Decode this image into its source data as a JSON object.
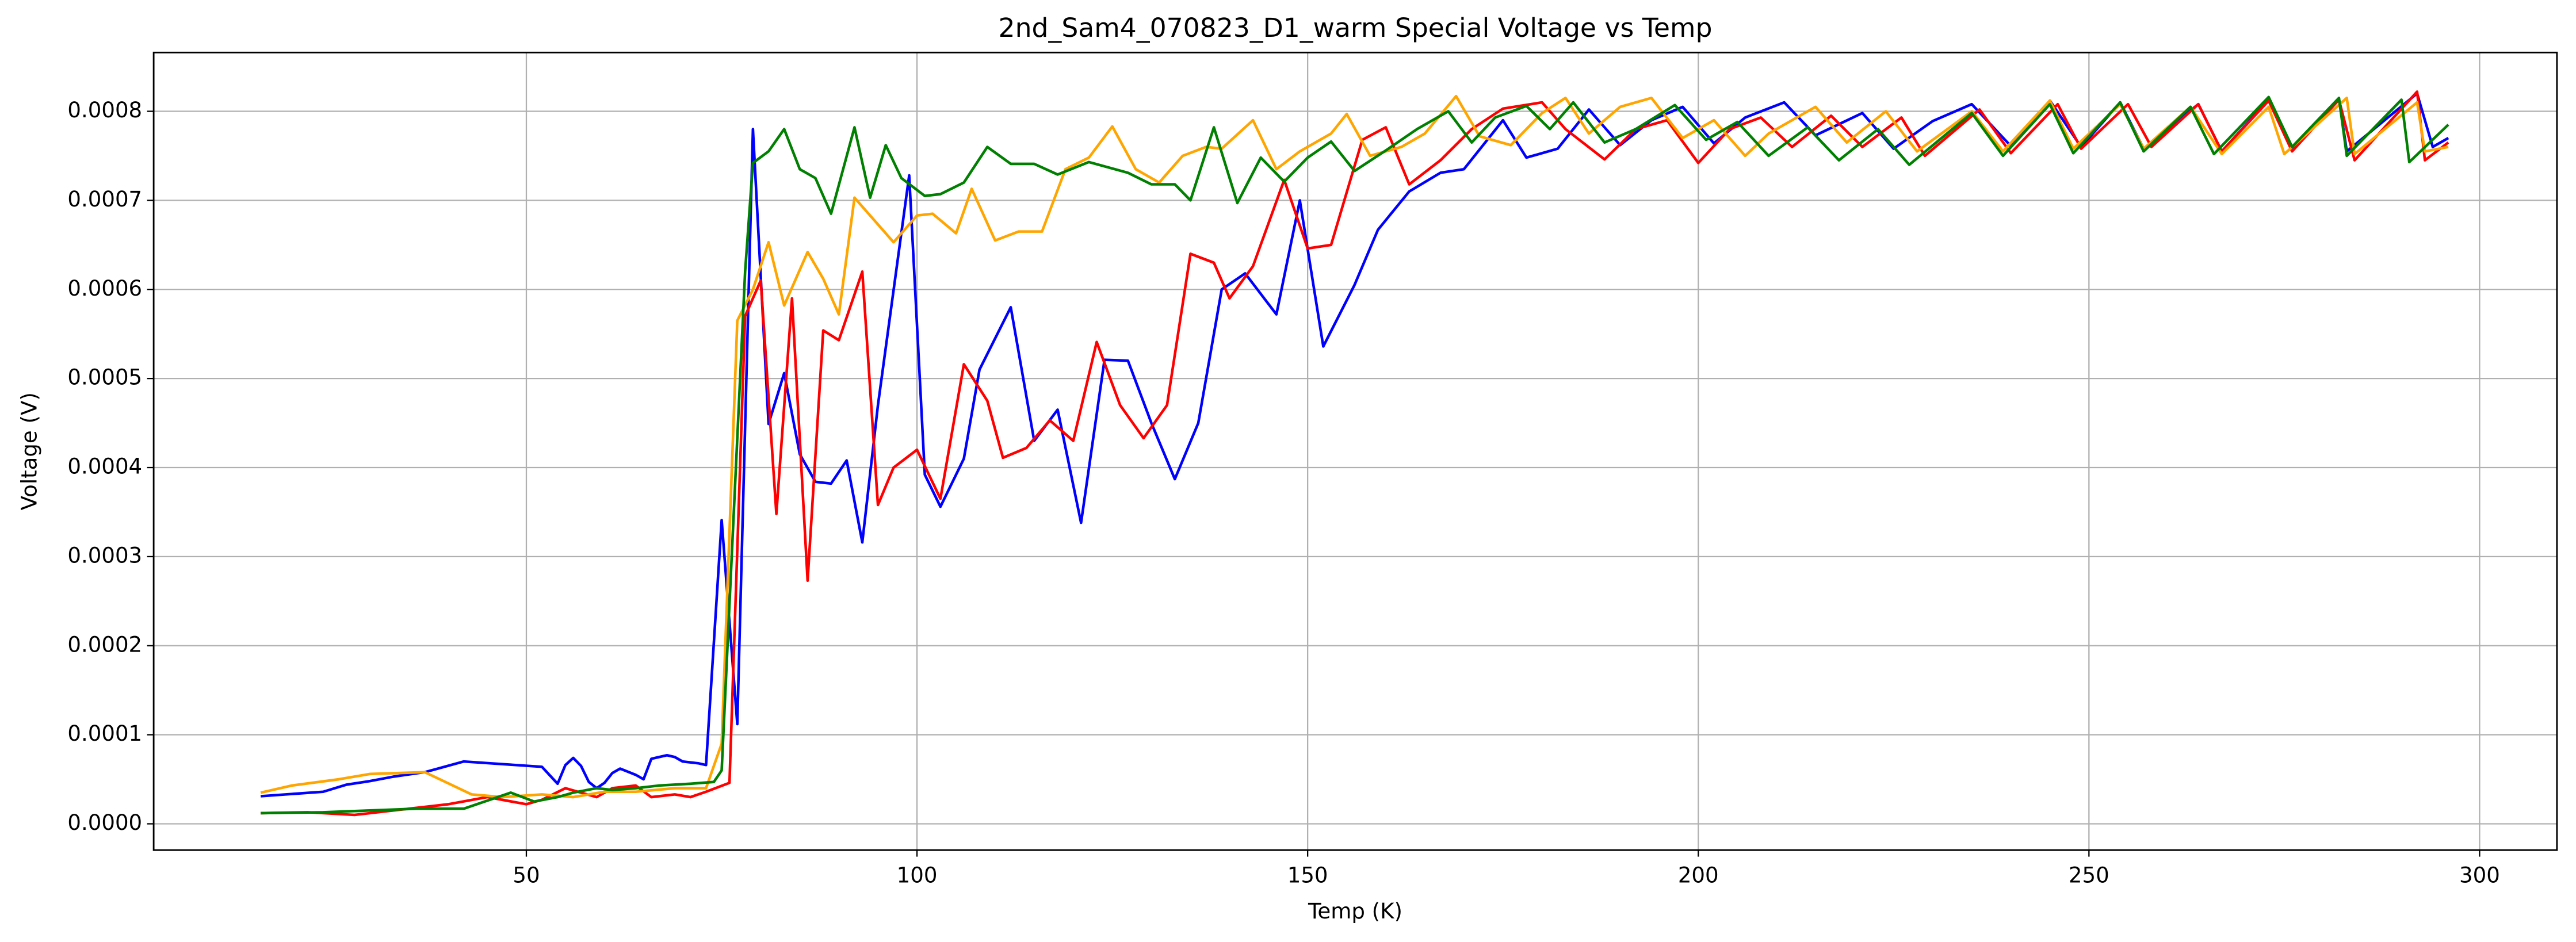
{
  "chart_data": {
    "type": "line",
    "title": "2nd_Sam4_070823_D1_warm Special Voltage vs Temp",
    "x_label": "Temp (K)",
    "y_label": "Voltage (V)",
    "grid": true,
    "xlim": [
      2.3,
      309.9
    ],
    "xticks": [
      50,
      100,
      150,
      200,
      250,
      300
    ],
    "ylim": [
      -2.95e-05,
      0.000866
    ],
    "yticks": [
      {
        "value": 0,
        "label": "0.0000"
      },
      {
        "value": 0.0001,
        "label": "0.0001"
      },
      {
        "value": 0.0002,
        "label": "0.0002"
      },
      {
        "value": 0.0003,
        "label": "0.0003"
      },
      {
        "value": 0.0004,
        "label": "0.0004"
      },
      {
        "value": 0.0005,
        "label": "0.0005"
      },
      {
        "value": 0.0006,
        "label": "0.0006"
      },
      {
        "value": 0.0007,
        "label": "0.0007"
      },
      {
        "value": 0.0008,
        "label": "0.0008"
      }
    ],
    "series": [
      {
        "color": "#0000ff",
        "x": [
          16,
          24,
          27,
          30,
          33,
          37,
          42,
          47,
          52,
          54,
          55,
          56,
          57,
          58,
          59,
          60,
          61,
          62,
          64,
          65,
          66,
          68,
          69,
          70,
          72,
          73,
          75,
          77,
          79,
          81,
          83,
          85,
          87,
          89,
          91,
          93,
          95,
          99,
          101,
          103,
          106,
          108,
          112,
          115,
          118,
          121,
          124,
          127,
          130,
          133,
          136,
          139,
          142,
          146,
          149,
          152,
          156,
          159,
          163,
          167,
          170,
          175,
          178,
          182,
          186,
          190,
          194,
          198,
          202,
          206,
          211,
          215,
          221,
          225,
          230,
          235,
          240,
          245,
          249,
          254,
          257,
          264,
          267,
          273,
          276,
          282,
          283,
          292,
          294,
          296
        ],
        "values": [
          3.1e-05,
          3.6e-05,
          4.4e-05,
          4.8e-05,
          5.3e-05,
          5.8e-05,
          7e-05,
          6.7e-05,
          6.4e-05,
          4.5e-05,
          6.6e-05,
          7.4e-05,
          6.5e-05,
          4.7e-05,
          4e-05,
          4.6e-05,
          5.7e-05,
          6.2e-05,
          5.5e-05,
          5e-05,
          7.3e-05,
          7.7e-05,
          7.5e-05,
          7e-05,
          6.8e-05,
          6.6e-05,
          0.000341,
          0.000112,
          0.00078,
          0.000449,
          0.000506,
          0.000415,
          0.000384,
          0.000382,
          0.000408,
          0.000316,
          0.00047,
          0.000728,
          0.000392,
          0.000356,
          0.00041,
          0.00051,
          0.00058,
          0.00043,
          0.000465,
          0.000338,
          0.000521,
          0.00052,
          0.00045,
          0.000387,
          0.00045,
          0.0006,
          0.000618,
          0.000572,
          0.0007,
          0.000536,
          0.000605,
          0.000667,
          0.00071,
          0.000731,
          0.000735,
          0.00079,
          0.000748,
          0.000758,
          0.000802,
          0.000762,
          0.00079,
          0.000805,
          0.000764,
          0.000793,
          0.00081,
          0.000773,
          0.000798,
          0.000758,
          0.000789,
          0.000808,
          0.000761,
          0.000812,
          0.00076,
          0.00081,
          0.000758,
          0.000808,
          0.000755,
          0.000813,
          0.000758,
          0.000814,
          0.000755,
          0.00082,
          0.00076,
          0.00077
        ]
      },
      {
        "color": "#ff0000",
        "x": [
          16,
          22,
          28,
          33,
          40,
          45,
          50,
          52,
          55,
          57,
          59,
          61,
          64,
          66,
          69,
          71,
          73,
          76,
          78,
          80,
          82,
          84,
          86,
          88,
          90,
          93,
          95,
          97,
          100,
          103,
          106,
          109,
          111,
          114,
          117,
          120,
          123,
          126,
          129,
          132,
          135,
          138,
          140,
          143,
          147,
          150,
          153,
          157,
          160,
          163,
          167,
          171,
          175,
          180,
          183,
          188,
          192,
          196,
          200,
          204,
          208,
          212,
          217,
          221,
          226,
          229,
          236,
          240,
          246,
          249,
          255,
          258,
          264,
          267,
          273,
          276,
          282,
          284,
          292,
          293,
          296
        ],
        "values": [
          1.2e-05,
          1.3e-05,
          1e-05,
          1.5e-05,
          2.2e-05,
          3e-05,
          2.2e-05,
          2.7e-05,
          4e-05,
          3.5e-05,
          3e-05,
          4e-05,
          4.3e-05,
          3e-05,
          3.3e-05,
          3e-05,
          3.6e-05,
          4.6e-05,
          0.00057,
          0.00061,
          0.000348,
          0.00059,
          0.000273,
          0.000554,
          0.000543,
          0.00062,
          0.000358,
          0.0004,
          0.00042,
          0.000365,
          0.000516,
          0.000475,
          0.000411,
          0.000422,
          0.000453,
          0.00043,
          0.000541,
          0.00047,
          0.000433,
          0.00047,
          0.00064,
          0.00063,
          0.00059,
          0.000626,
          0.000723,
          0.000646,
          0.00065,
          0.000768,
          0.000782,
          0.000718,
          0.000745,
          0.00078,
          0.000803,
          0.00081,
          0.00078,
          0.000746,
          0.00078,
          0.00079,
          0.000742,
          0.00078,
          0.000793,
          0.00076,
          0.000795,
          0.00076,
          0.000793,
          0.00075,
          0.000802,
          0.000753,
          0.000808,
          0.000758,
          0.000808,
          0.00076,
          0.000808,
          0.000755,
          0.000812,
          0.000755,
          0.000813,
          0.000745,
          0.000822,
          0.000745,
          0.000765
        ]
      },
      {
        "color": "#ffa500",
        "x": [
          16,
          20,
          26,
          30,
          37,
          43,
          47,
          52,
          56,
          60,
          64,
          69,
          73,
          75,
          77,
          79,
          81,
          83,
          86,
          88,
          90,
          92,
          94,
          97,
          100,
          102,
          105,
          107,
          110,
          113,
          116,
          119,
          122,
          125,
          128,
          131,
          134,
          137,
          139,
          143,
          146,
          149,
          153,
          155,
          158,
          162,
          165,
          169,
          172,
          176,
          180,
          183,
          186,
          190,
          194,
          198,
          202,
          206,
          209,
          215,
          219,
          224,
          228,
          235,
          239,
          245,
          248,
          254,
          257,
          263,
          267,
          273,
          275,
          283,
          284,
          292,
          293,
          296
        ],
        "values": [
          3.5e-05,
          4.3e-05,
          5e-05,
          5.6e-05,
          5.8e-05,
          3.3e-05,
          3e-05,
          3.3e-05,
          3e-05,
          3.6e-05,
          3.6e-05,
          4e-05,
          4e-05,
          9e-05,
          0.000565,
          0.0006,
          0.000653,
          0.000582,
          0.000642,
          0.000612,
          0.000572,
          0.000703,
          0.000683,
          0.000653,
          0.000683,
          0.000685,
          0.000663,
          0.000713,
          0.000655,
          0.000665,
          0.000665,
          0.000735,
          0.000748,
          0.000783,
          0.000735,
          0.00072,
          0.00075,
          0.00076,
          0.000758,
          0.00079,
          0.000735,
          0.000755,
          0.000775,
          0.000797,
          0.00075,
          0.00076,
          0.000775,
          0.000817,
          0.000772,
          0.000762,
          0.000798,
          0.000815,
          0.000775,
          0.000805,
          0.000815,
          0.00077,
          0.00079,
          0.00075,
          0.000775,
          0.000805,
          0.000765,
          0.0008,
          0.000755,
          0.0008,
          0.000755,
          0.000812,
          0.000758,
          0.000808,
          0.000758,
          0.000805,
          0.000752,
          0.000805,
          0.000752,
          0.000815,
          0.000752,
          0.00081,
          0.000755,
          0.00076
        ]
      },
      {
        "color": "#008000",
        "x": [
          16,
          24,
          30,
          36,
          42,
          48,
          51,
          54,
          56,
          59,
          61,
          64,
          67,
          71,
          74,
          75,
          78,
          79,
          81,
          83,
          85,
          87,
          89,
          92,
          94,
          96,
          98,
          101,
          103,
          106,
          109,
          112,
          115,
          118,
          122,
          127,
          130,
          133,
          135,
          138,
          141,
          144,
          147,
          150,
          153,
          156,
          160,
          164,
          168,
          171,
          174,
          178,
          181,
          184,
          188,
          192,
          197,
          201,
          205,
          209,
          214,
          218,
          223,
          227,
          235,
          239,
          245,
          248,
          254,
          257,
          263,
          266,
          273,
          276,
          282,
          283,
          290,
          291,
          296
        ],
        "values": [
          1.2e-05,
          1.3e-05,
          1.5e-05,
          1.7e-05,
          1.7e-05,
          3.5e-05,
          2.5e-05,
          3e-05,
          3.5e-05,
          4e-05,
          3.8e-05,
          4e-05,
          4.3e-05,
          4.5e-05,
          4.7e-05,
          6e-05,
          0.00062,
          0.000742,
          0.000755,
          0.00078,
          0.000735,
          0.000725,
          0.000685,
          0.000782,
          0.000703,
          0.000762,
          0.000725,
          0.000705,
          0.000707,
          0.00072,
          0.00076,
          0.000741,
          0.000741,
          0.000729,
          0.000743,
          0.000731,
          0.000718,
          0.000718,
          0.0007,
          0.000782,
          0.000697,
          0.000748,
          0.000721,
          0.000748,
          0.000766,
          0.000733,
          0.000756,
          0.00078,
          0.0008,
          0.000765,
          0.000793,
          0.000806,
          0.00078,
          0.00081,
          0.000765,
          0.00078,
          0.000807,
          0.000768,
          0.000788,
          0.00075,
          0.000782,
          0.000745,
          0.00078,
          0.00074,
          0.000798,
          0.00075,
          0.000808,
          0.000753,
          0.00081,
          0.000755,
          0.000805,
          0.000752,
          0.000816,
          0.00076,
          0.000815,
          0.00075,
          0.000813,
          0.000743,
          0.000785
        ]
      }
    ]
  }
}
